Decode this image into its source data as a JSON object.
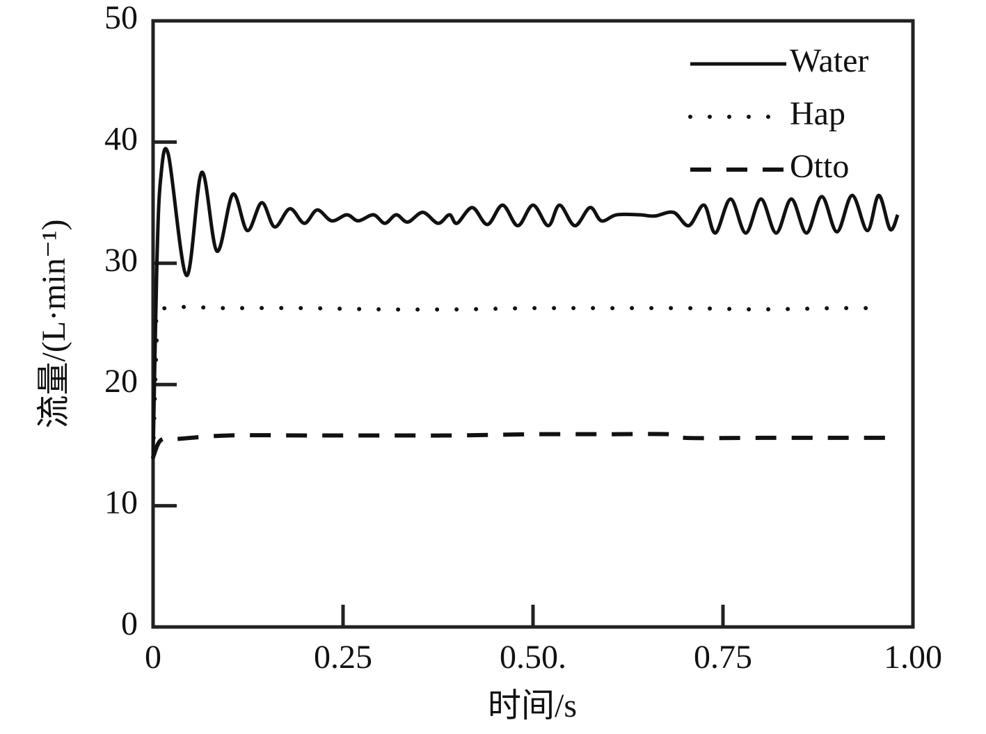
{
  "chart_data": {
    "type": "line",
    "xlabel": "时间/s",
    "ylabel": "流量/(L·min⁻¹)",
    "xlim": [
      0,
      1
    ],
    "ylim": [
      0,
      50
    ],
    "xticks": [
      0,
      0.25,
      {
        "value": 0.5,
        "label": "0.50."
      },
      0.75,
      {
        "value": 1,
        "label": "1.00"
      }
    ],
    "yticks": [
      0,
      10,
      20,
      30,
      40,
      50
    ],
    "legend": "upper right",
    "series": [
      {
        "name": "Water",
        "color": "#111111",
        "dash": "solid",
        "x": [
          0,
          0.005,
          0.01,
          0.02,
          0.044,
          0.064,
          0.084,
          0.105,
          0.124,
          0.143,
          0.16,
          0.18,
          0.199,
          0.216,
          0.235,
          0.255,
          0.27,
          0.29,
          0.305,
          0.32,
          0.335,
          0.355,
          0.375,
          0.39,
          0.4,
          0.42,
          0.44,
          0.46,
          0.48,
          0.5,
          0.52,
          0.535,
          0.555,
          0.575,
          0.59,
          0.61,
          0.64,
          0.66,
          0.685,
          0.705,
          0.725,
          0.74,
          0.76,
          0.78,
          0.8,
          0.82,
          0.84,
          0.86,
          0.88,
          0.9,
          0.92,
          0.94,
          0.955,
          0.97,
          0.98
        ],
        "values": [
          14,
          30,
          37,
          39,
          29,
          37.5,
          31,
          35.7,
          32.7,
          35,
          33,
          34.5,
          33.3,
          34.4,
          33.5,
          34,
          33.5,
          34,
          33.3,
          34,
          33.4,
          34.2,
          33.3,
          34,
          33.3,
          34.6,
          33.2,
          34.8,
          33.1,
          34.8,
          33.1,
          34.8,
          33.1,
          34.6,
          33.5,
          34,
          34,
          33.9,
          34.2,
          33.1,
          34.8,
          32.5,
          35.3,
          32.5,
          35.3,
          32.5,
          35.3,
          32.5,
          35.5,
          32.6,
          35.6,
          32.7,
          35.6,
          32.8,
          34
        ]
      },
      {
        "name": "Hap",
        "color": "#111111",
        "dash": "dotted",
        "x": [
          0,
          0.005,
          0.01,
          0.1,
          0.2,
          0.3,
          0.4,
          0.5,
          0.6,
          0.7,
          0.8,
          0.9,
          0.96
        ],
        "values": [
          14,
          24,
          26.2,
          26.3,
          26.3,
          26.2,
          26.2,
          26.3,
          26.3,
          26.3,
          26.2,
          26.3,
          26.3
        ]
      },
      {
        "name": "Otto",
        "color": "#111111",
        "dash": "dashed",
        "x": [
          0,
          0.01,
          0.03,
          0.1,
          0.2,
          0.3,
          0.4,
          0.5,
          0.6,
          0.68,
          0.7,
          0.8,
          0.9,
          0.98
        ],
        "values": [
          14,
          15.4,
          15.5,
          15.8,
          15.8,
          15.8,
          15.8,
          15.9,
          15.9,
          15.9,
          15.6,
          15.6,
          15.6,
          15.6
        ]
      }
    ]
  }
}
